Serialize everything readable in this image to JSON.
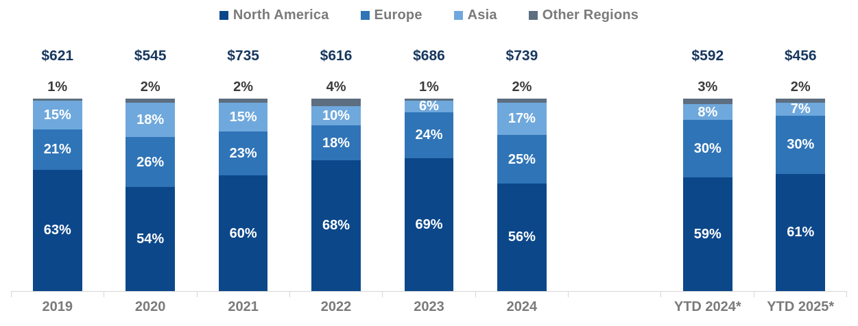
{
  "legend": {
    "items": [
      {
        "key": "na",
        "label": "North America",
        "color": "#0C478A"
      },
      {
        "key": "europe",
        "label": "Europe",
        "color": "#2F74B7"
      },
      {
        "key": "asia",
        "label": "Asia",
        "color": "#6FA8DC"
      },
      {
        "key": "other",
        "label": "Other Regions",
        "color": "#5C6E80"
      }
    ]
  },
  "chart_data": {
    "type": "bar",
    "variant": "100-percent-stacked-column",
    "legend_position": "top",
    "grid": false,
    "axis_line": true,
    "value_suffix": "%",
    "categories": [
      "2019",
      "2020",
      "2021",
      "2022",
      "2023",
      "2024",
      "YTD 2024*",
      "YTD 2025*"
    ],
    "totals": [
      621,
      545,
      735,
      616,
      686,
      739,
      592,
      456
    ],
    "totals_format": "$ millions (as shown: $621)",
    "series": [
      {
        "key": "na",
        "name": "North America",
        "color": "#0C478A",
        "values": [
          63,
          54,
          60,
          68,
          69,
          56,
          59,
          61
        ]
      },
      {
        "key": "europe",
        "name": "Europe",
        "color": "#2F74B7",
        "values": [
          21,
          26,
          23,
          18,
          24,
          25,
          30,
          30
        ]
      },
      {
        "key": "asia",
        "name": "Asia",
        "color": "#6FA8DC",
        "values": [
          15,
          18,
          15,
          10,
          6,
          17,
          8,
          7
        ]
      },
      {
        "key": "other",
        "name": "Other Regions",
        "color": "#5C6E80",
        "values": [
          1,
          2,
          2,
          4,
          1,
          2,
          3,
          2
        ]
      }
    ]
  },
  "bars": [
    {
      "category": "2019",
      "total": "$621",
      "other_pct": "1%",
      "asia_pct": "15%",
      "europe_pct": "21%",
      "na_pct": "63%"
    },
    {
      "category": "2020",
      "total": "$545",
      "other_pct": "2%",
      "asia_pct": "18%",
      "europe_pct": "26%",
      "na_pct": "54%"
    },
    {
      "category": "2021",
      "total": "$735",
      "other_pct": "2%",
      "asia_pct": "15%",
      "europe_pct": "23%",
      "na_pct": "60%"
    },
    {
      "category": "2022",
      "total": "$616",
      "other_pct": "4%",
      "asia_pct": "10%",
      "europe_pct": "18%",
      "na_pct": "68%"
    },
    {
      "category": "2023",
      "total": "$686",
      "other_pct": "1%",
      "asia_pct": "6%",
      "europe_pct": "24%",
      "na_pct": "69%"
    },
    {
      "category": "2024",
      "total": "$739",
      "other_pct": "2%",
      "asia_pct": "17%",
      "europe_pct": "25%",
      "na_pct": "56%"
    },
    {
      "category": "YTD 2024*",
      "total": "$592",
      "other_pct": "3%",
      "asia_pct": "8%",
      "europe_pct": "30%",
      "na_pct": "59%"
    },
    {
      "category": "YTD 2025*",
      "total": "$456",
      "other_pct": "2%",
      "asia_pct": "7%",
      "europe_pct": "30%",
      "na_pct": "61%"
    }
  ]
}
